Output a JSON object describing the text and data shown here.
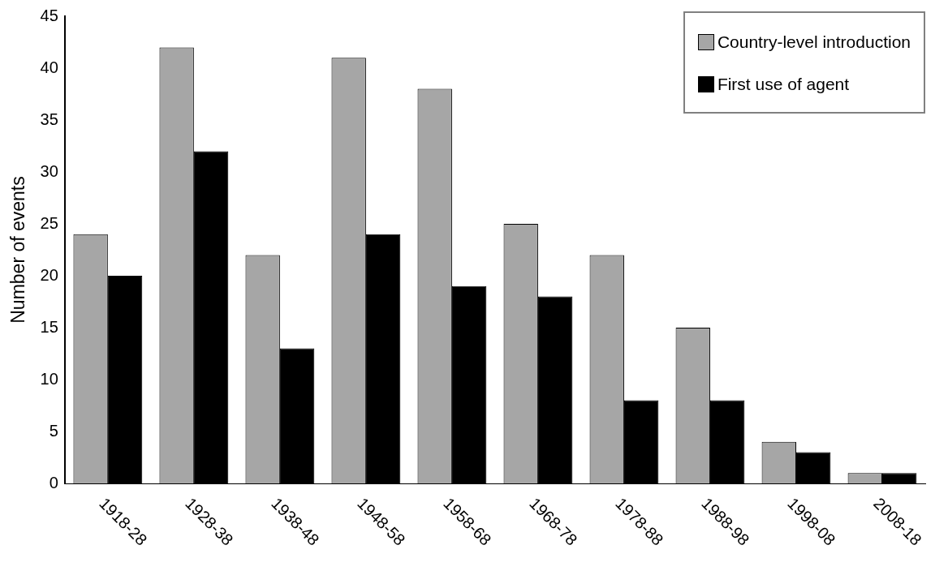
{
  "chart_data": {
    "type": "bar",
    "ylabel": "Number of events",
    "categories": [
      "1918-28",
      "1928-38",
      "1938-48",
      "1948-58",
      "1958-68",
      "1968-78",
      "1978-88",
      "1988-98",
      "1998-08",
      "2008-18"
    ],
    "series": [
      {
        "name": "Country-level introduction",
        "color": "#a6a6a6",
        "values": [
          24,
          42,
          22,
          41,
          38,
          25,
          22,
          15,
          4,
          1
        ]
      },
      {
        "name": "First use of agent",
        "color": "#000000",
        "values": [
          20,
          32,
          13,
          24,
          19,
          18,
          8,
          8,
          3,
          1
        ]
      }
    ],
    "ylim": [
      0,
      45
    ],
    "yticks": [
      0,
      5,
      10,
      15,
      20,
      25,
      30,
      35,
      40,
      45
    ],
    "grid": false,
    "legend": "top right"
  }
}
